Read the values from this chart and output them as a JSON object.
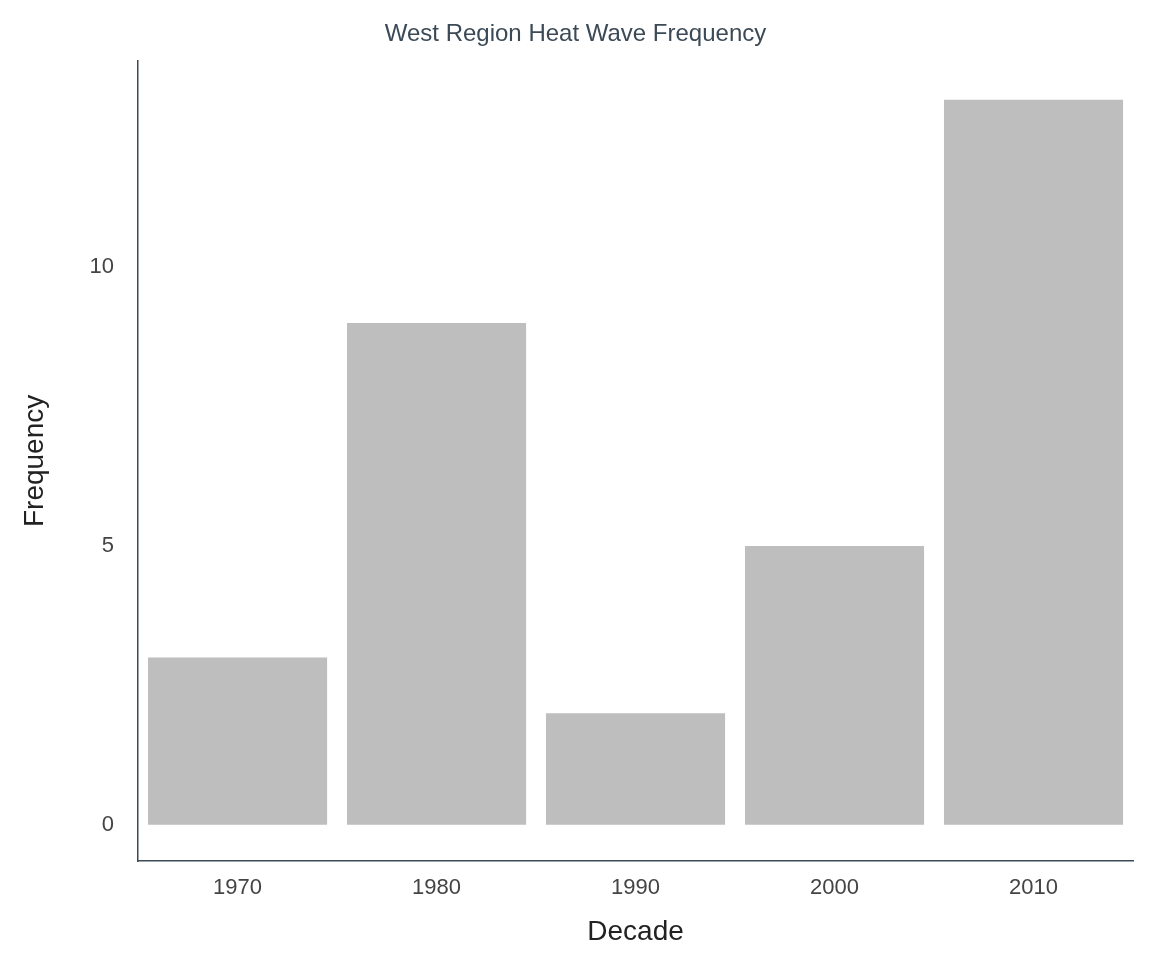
{
  "chart_data": {
    "type": "bar",
    "title": "West Region Heat Wave Frequency",
    "xlabel": "Decade",
    "ylabel": "Frequency",
    "categories": [
      "1970",
      "1980",
      "1990",
      "2000",
      "2010"
    ],
    "values": [
      3,
      9,
      2,
      5,
      13
    ],
    "color": "#bebebe",
    "ylim": [
      -0.65,
      13.7
    ],
    "yticks": [
      0,
      5,
      10
    ],
    "grid": false,
    "legend": false
  }
}
